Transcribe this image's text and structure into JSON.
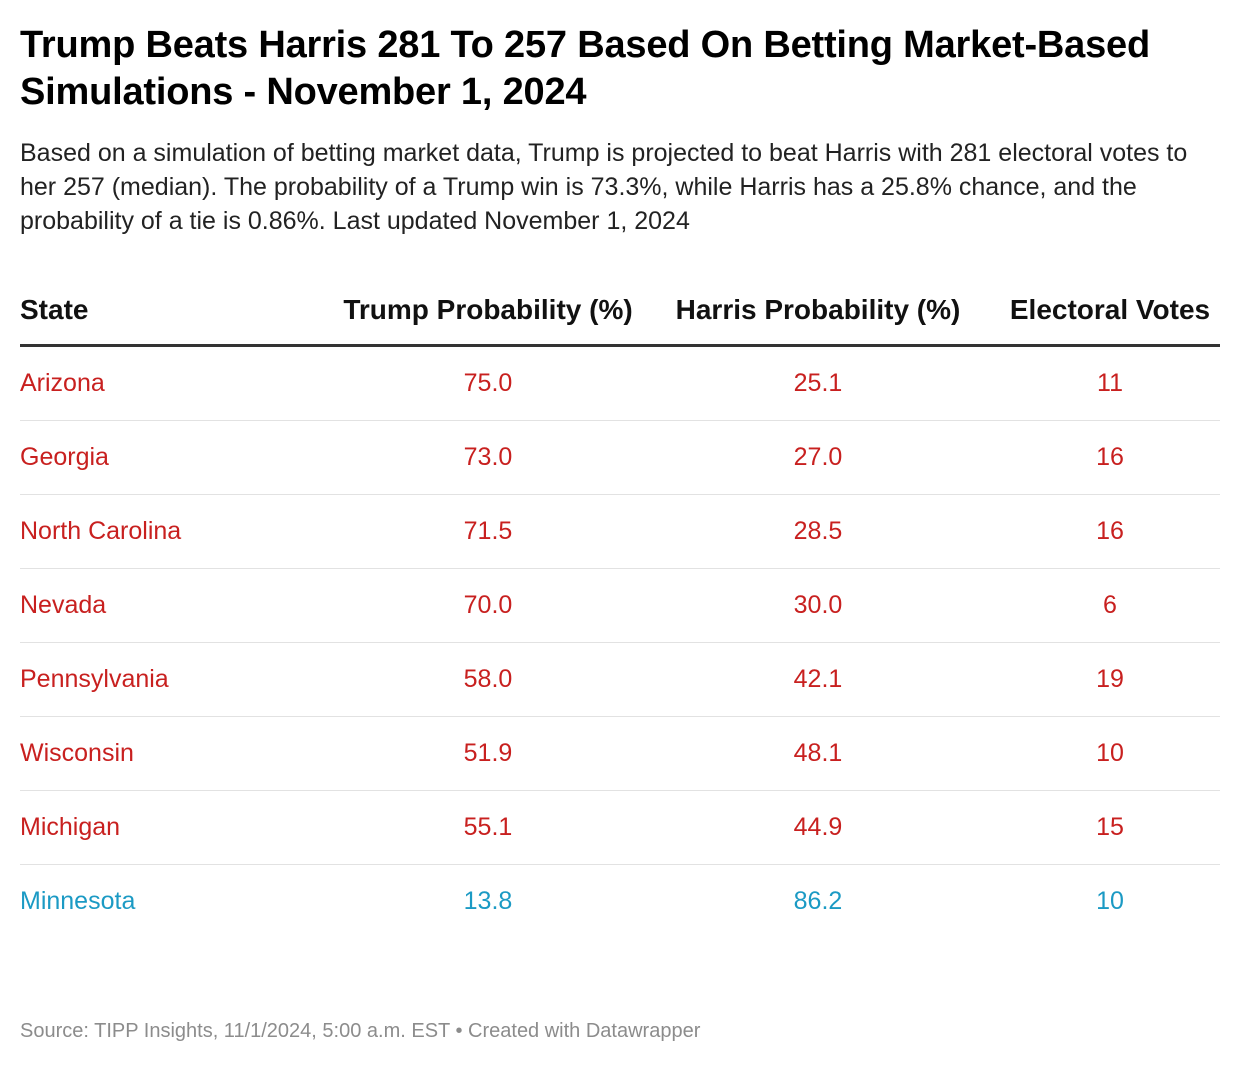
{
  "title": "Trump Beats Harris 281 To 257 Based On Betting Market-Based Simulations - November 1, 2024",
  "description": "Based on a simulation of betting market data, Trump is projected to beat Harris with 281 electoral votes to her 257 (median). The probability of a Trump win is 73.3%, while Harris has a 25.8% chance, and the probability of a tie is 0.86%. Last updated November 1, 2024",
  "colors": {
    "trump": "#c8201f",
    "harris": "#1b9ac4"
  },
  "table": {
    "headers": {
      "state": "State",
      "trump": "Trump Probability (%)",
      "harris": "Harris Probability (%)",
      "electoral_votes": "Electoral Votes"
    },
    "rows": [
      {
        "state": "Arizona",
        "trump": "75.0",
        "harris": "25.1",
        "ev": "11",
        "leader": "trump"
      },
      {
        "state": "Georgia",
        "trump": "73.0",
        "harris": "27.0",
        "ev": "16",
        "leader": "trump"
      },
      {
        "state": "North Carolina",
        "trump": "71.5",
        "harris": "28.5",
        "ev": "16",
        "leader": "trump"
      },
      {
        "state": "Nevada",
        "trump": "70.0",
        "harris": "30.0",
        "ev": "6",
        "leader": "trump"
      },
      {
        "state": "Pennsylvania",
        "trump": "58.0",
        "harris": "42.1",
        "ev": "19",
        "leader": "trump"
      },
      {
        "state": "Wisconsin",
        "trump": "51.9",
        "harris": "48.1",
        "ev": "10",
        "leader": "trump"
      },
      {
        "state": "Michigan",
        "trump": "55.1",
        "harris": "44.9",
        "ev": "15",
        "leader": "trump"
      },
      {
        "state": "Minnesota",
        "trump": "13.8",
        "harris": "86.2",
        "ev": "10",
        "leader": "harris"
      }
    ]
  },
  "footer": {
    "source": "Source: TIPP Insights, 11/1/2024, 5:00 a.m. EST",
    "separator": "•",
    "credit": "Created with Datawrapper"
  }
}
